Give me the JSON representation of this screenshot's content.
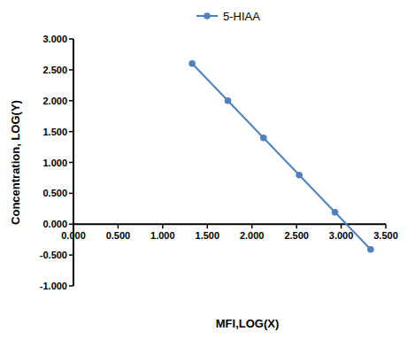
{
  "chart_data": {
    "type": "line",
    "x_label": "MFI,LOG(X)",
    "y_label": "Concentration, LOG(Y)",
    "x": [
      1.33,
      1.73,
      2.13,
      2.53,
      2.93,
      3.33
    ],
    "series": [
      {
        "name": "5-HIAA",
        "color": "#4f81bd",
        "marker": "circle",
        "line_style": "solid",
        "values": [
          2.602,
          2.0,
          1.398,
          0.796,
          0.194,
          -0.408
        ]
      }
    ],
    "xlim": [
      0,
      3.5
    ],
    "xticks": [
      {
        "value": 0,
        "label": "0.000"
      },
      {
        "value": 0.5,
        "label": "0.500"
      },
      {
        "value": 1,
        "label": "1.000"
      },
      {
        "value": 1.5,
        "label": "1.500"
      },
      {
        "value": 2,
        "label": "2.000"
      },
      {
        "value": 2.5,
        "label": "2.500"
      },
      {
        "value": 3,
        "label": "3.000"
      },
      {
        "value": 3.5,
        "label": "3.500"
      }
    ],
    "ylim": [
      -1,
      3
    ],
    "yticks": [
      {
        "value": -1,
        "label": "-1.000"
      },
      {
        "value": -0.5,
        "label": "-0.500"
      },
      {
        "value": 0,
        "label": "0.000"
      },
      {
        "value": 0.5,
        "label": "0.500"
      },
      {
        "value": 1,
        "label": "1.000"
      },
      {
        "value": 1.5,
        "label": "1.500"
      },
      {
        "value": 2,
        "label": "2.000"
      },
      {
        "value": 2.5,
        "label": "2.500"
      },
      {
        "value": 3,
        "label": "3.000"
      }
    ],
    "legend": "top",
    "grid": false
  }
}
